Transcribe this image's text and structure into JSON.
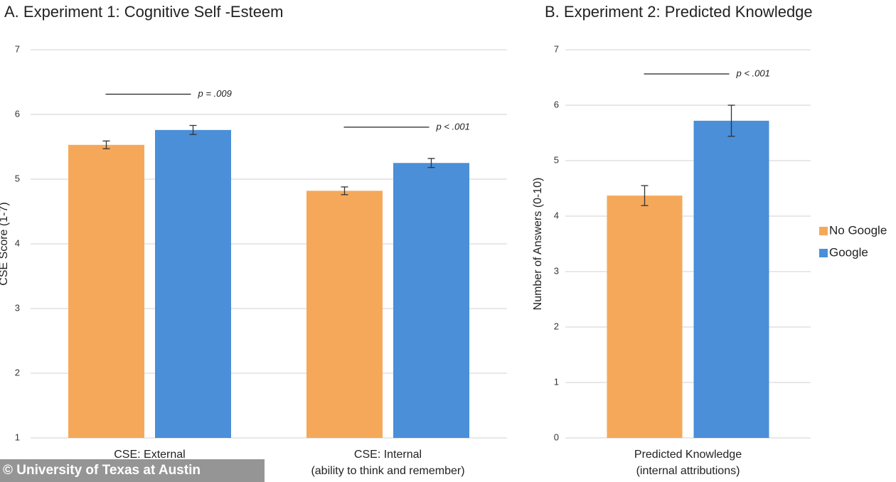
{
  "chart_data": [
    {
      "type": "bar",
      "title": "A. Experiment 1: Cognitive Self -Esteem",
      "y_label": "CSE Score (1-7)",
      "categories": [
        "CSE: External",
        "CSE: Internal"
      ],
      "category_sublabels": [
        null,
        "(ability to think and remember)"
      ],
      "series": [
        {
          "color": "#f5a85a",
          "values": [
            5.53,
            4.82
          ],
          "errors": [
            0.06,
            0.06
          ]
        },
        {
          "color": "#4a8fd8",
          "values": [
            5.76,
            5.25
          ],
          "errors": [
            0.07,
            0.07
          ]
        }
      ],
      "annotations": [
        "p = .009",
        "p < .001"
      ],
      "ylim": [
        1,
        7
      ],
      "yticks": [
        1,
        2,
        3,
        4,
        5,
        6,
        7
      ],
      "grid": true
    },
    {
      "type": "bar",
      "title": "B. Experiment 2: Predicted Knowledge",
      "y_label": "Number of Answers (0-10)",
      "categories": [
        "Predicted Knowledge"
      ],
      "category_sublabels": [
        "(internal attributions)"
      ],
      "series": [
        {
          "name": "No Google",
          "color": "#f5a85a",
          "values": [
            4.37
          ],
          "errors": [
            0.18
          ]
        },
        {
          "name": "Google",
          "color": "#4a8fd8",
          "values": [
            5.72
          ],
          "errors": [
            0.28
          ]
        }
      ],
      "annotations": [
        "p < .001"
      ],
      "ylim": [
        0,
        7
      ],
      "yticks": [
        0,
        1,
        2,
        3,
        4,
        5,
        6,
        7
      ],
      "grid": true,
      "legend": "right"
    }
  ],
  "watermark": "© University of Texas at Austin"
}
